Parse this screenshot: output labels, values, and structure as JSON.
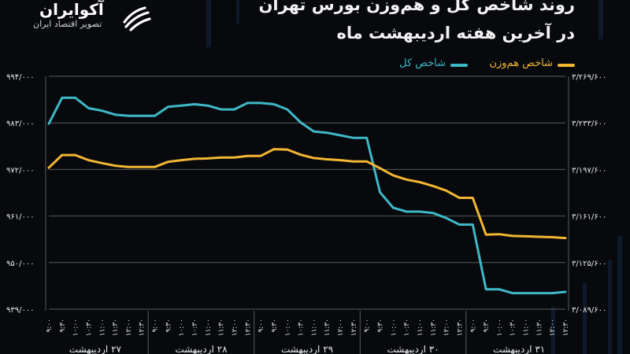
{
  "header": {
    "title_line1": "روند شاخص کل و هم‌وزن بورس تهران",
    "title_line2": "در آخرین هفته اردیبهشت ماه"
  },
  "brand": {
    "name": "آکوایران",
    "tagline": "تصویر اقتصاد ایران",
    "icon": "akoiran-logo"
  },
  "legend": {
    "equal_weight_label": "شاخص هم‌وزن",
    "total_label": "شاخص کل"
  },
  "colors": {
    "background": "#07090d",
    "total_line": "#3fb8c6",
    "equal_weight_line": "#f2b632",
    "grid": "#5a5a5a",
    "text": "#e8e8e8"
  },
  "chart_data": {
    "type": "line",
    "title": "",
    "xlabel": "",
    "ylabel": "",
    "grid": true,
    "legend_position": "top-right",
    "x": [
      "9:00",
      "9:30",
      "10:00",
      "10:30",
      "11:00",
      "11:30",
      "12:00",
      "12:30",
      "9:00",
      "9:30",
      "10:00",
      "10:30",
      "11:00",
      "11:30",
      "12:00",
      "12:30",
      "9:00",
      "9:30",
      "10:00",
      "10:30",
      "11:00",
      "11:30",
      "12:00",
      "12:30",
      "9:00",
      "9:30",
      "10:00",
      "10:30",
      "11:00",
      "11:30",
      "12:00",
      "12:30",
      "9:00",
      "9:30",
      "10:00",
      "10:30",
      "11:00",
      "11:30",
      "12:00",
      "12:30"
    ],
    "x_tick_labels": [
      "۹:۰۰",
      "۹:۳۰",
      "۱۰:۰۰",
      "۱۰:۳۰",
      "۱۱:۰۰",
      "۱۱:۳۰",
      "۱۲:۰۰",
      "۱۲:۳۰",
      "۹:۰۰",
      "۹:۳۰",
      "۱۰:۰۰",
      "۱۰:۳۰",
      "۱۱:۰۰",
      "۱۱:۳۰",
      "۱۲:۰۰",
      "۱۲:۳۰",
      "۹:۰۰",
      "۹:۳۰",
      "۱۰:۰۰",
      "۱۰:۳۰",
      "۱۱:۰۰",
      "۱۱:۳۰",
      "۱۲:۰۰",
      "۱۲:۳۰",
      "۹:۰۰",
      "۹:۳۰",
      "۱۰:۰۰",
      "۱۰:۳۰",
      "۱۱:۰۰",
      "۱۱:۳۰",
      "۱۲:۰۰",
      "۱۲:۳۰",
      "۹:۰۰",
      "۹:۳۰",
      "۱۰:۰۰",
      "۱۰:۳۰",
      "۱۱:۰۰",
      "۱۱:۳۰",
      "۱۲:۰۰",
      "۱۲:۳۰"
    ],
    "day_groups": [
      {
        "label": "۲۷ اردیبهشت",
        "start": 0,
        "end": 7
      },
      {
        "label": "۲۸ اردیبهشت",
        "start": 8,
        "end": 15
      },
      {
        "label": "۲۹ اردیبهشت",
        "start": 16,
        "end": 23
      },
      {
        "label": "۳۰ اردیبهشت",
        "start": 24,
        "end": 31
      },
      {
        "label": "۳۱ اردیبهشت",
        "start": 32,
        "end": 39
      }
    ],
    "left_axis": {
      "tick_labels": [
        "۹۹۴/۰۰۰",
        "۹۸۳/۰۰۰",
        "۹۷۲/۰۰۰",
        "۹۶۱/۰۰۰",
        "۹۵۰/۰۰۰",
        "۹۳۹/۰۰۰"
      ],
      "ticks": [
        994000,
        983000,
        972000,
        961000,
        950000,
        939000
      ],
      "ylim": [
        939000,
        994000
      ],
      "series": "equal_weight"
    },
    "right_axis": {
      "tick_labels": [
        "۳/۲۶۹/۶۰۰",
        "۳/۲۳۳/۶۰۰",
        "۳/۱۹۷/۶۰۰",
        "۳/۱۶۱/۶۰۰",
        "۳/۱۲۵/۶۰۰",
        "۳/۰۸۹/۶۰۰"
      ],
      "ticks": [
        3269600,
        3233600,
        3197600,
        3161600,
        3125600,
        3089600
      ],
      "ylim": [
        3089600,
        3269600
      ],
      "series": "total"
    },
    "series": [
      {
        "name": "شاخص کل",
        "key": "total",
        "axis": "right",
        "values": [
          3233000,
          3253000,
          3253000,
          3245000,
          3243000,
          3240000,
          3239000,
          3239000,
          3239000,
          3246000,
          3247000,
          3248000,
          3247000,
          3244000,
          3244000,
          3249000,
          3249000,
          3248000,
          3244000,
          3234000,
          3227000,
          3226000,
          3224000,
          3222000,
          3222000,
          3180000,
          3168000,
          3165000,
          3165000,
          3164000,
          3160000,
          3155000,
          3155000,
          3105000,
          3105000,
          3102000,
          3102000,
          3102000,
          3102000,
          3103000
        ]
      },
      {
        "name": "شاخص هم‌وزن",
        "key": "equal_weight",
        "axis": "left",
        "values": [
          972400,
          975400,
          975400,
          974200,
          973500,
          972900,
          972600,
          972600,
          972600,
          973800,
          974200,
          974500,
          974600,
          974800,
          974800,
          975200,
          975200,
          976800,
          976700,
          975500,
          974700,
          974400,
          974200,
          973900,
          973900,
          972300,
          970600,
          969600,
          969000,
          968100,
          967000,
          965300,
          965300,
          956600,
          956700,
          956300,
          956200,
          956100,
          956000,
          955800
        ]
      }
    ]
  }
}
